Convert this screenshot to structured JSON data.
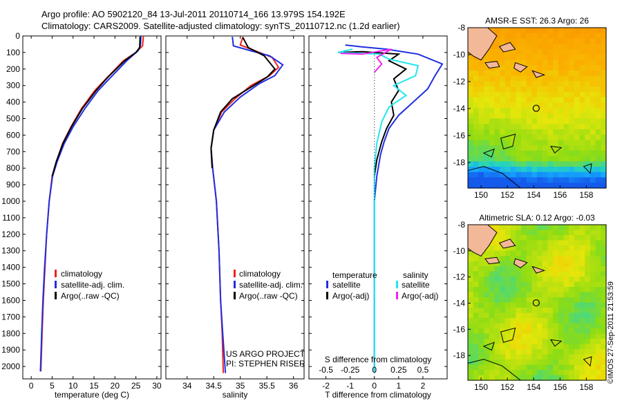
{
  "header": {
    "line1": "Argo profile: AO 5902120_84 13-Jul-2011 20110714_166 13.979S 154.192E",
    "line2": "Climatology: CARS2009. Satellite-adjusted climatology: synTS_20110712.nc (1.2d earlier)"
  },
  "colors": {
    "climatology": "#e8231f",
    "satellite": "#1f2ee0",
    "argo": "#000000",
    "sal_satellite": "#22e6ee",
    "sal_argo": "#ee22ee",
    "sst_warm": "#f6a300",
    "sst_mid": "#9fd600",
    "sst_cool": "#14aaff",
    "land": "#f3b898"
  },
  "depth_axis": {
    "ticks": [
      "0",
      "100",
      "200",
      "300",
      "400",
      "500",
      "600",
      "700",
      "800",
      "900",
      "1000",
      "1100",
      "1200",
      "1300",
      "1400",
      "1500",
      "1600",
      "1700",
      "1800",
      "1900",
      "2000"
    ],
    "range": [
      0,
      2075
    ]
  },
  "chart_data": [
    {
      "type": "line",
      "name": "temperature",
      "xlabel": "temperature (deg C)",
      "xlim": [
        -2,
        31
      ],
      "xticks": [
        "0",
        "5",
        "10",
        "15",
        "20",
        "25",
        "30"
      ],
      "xtick_values": [
        0,
        5,
        10,
        15,
        20,
        25,
        30
      ],
      "legend": [
        "climatology",
        "satellite-adj. clim.",
        "Argo(..raw -QC)"
      ],
      "series": [
        {
          "name": "climatology",
          "color": "#e8231f",
          "points": [
            [
              26.8,
              0
            ],
            [
              26.6,
              60
            ],
            [
              25.0,
              100
            ],
            [
              22.0,
              150
            ],
            [
              18.2,
              250
            ],
            [
              15.2,
              330
            ],
            [
              12.0,
              440
            ],
            [
              9.5,
              550
            ],
            [
              7.5,
              650
            ],
            [
              6.0,
              760
            ],
            [
              5.0,
              850
            ],
            [
              4.3,
              1000
            ],
            [
              3.7,
              1200
            ],
            [
              3.3,
              1400
            ],
            [
              2.9,
              1600
            ],
            [
              2.6,
              1800
            ],
            [
              2.3,
              2030
            ]
          ]
        },
        {
          "name": "satellite-adj. clim.",
          "color": "#1f2ee0",
          "points": [
            [
              26.2,
              0
            ],
            [
              26.1,
              55
            ],
            [
              25.5,
              90
            ],
            [
              22.8,
              150
            ],
            [
              19.0,
              250
            ],
            [
              16.0,
              330
            ],
            [
              12.8,
              440
            ],
            [
              10.0,
              550
            ],
            [
              7.9,
              650
            ],
            [
              6.2,
              760
            ],
            [
              5.1,
              850
            ],
            [
              4.3,
              1000
            ],
            [
              3.7,
              1200
            ],
            [
              3.2,
              1400
            ],
            [
              2.8,
              1600
            ],
            [
              2.5,
              1800
            ],
            [
              2.2,
              2030
            ]
          ]
        },
        {
          "name": "Argo(..raw -QC)",
          "color": "#000000",
          "points": [
            [
              26.0,
              5
            ],
            [
              25.9,
              70
            ],
            [
              25.0,
              100
            ],
            [
              22.3,
              150
            ],
            [
              18.3,
              250
            ],
            [
              15.5,
              330
            ],
            [
              12.2,
              440
            ],
            [
              9.6,
              550
            ],
            [
              7.6,
              650
            ],
            [
              6.0,
              760
            ],
            [
              5.0,
              850
            ]
          ]
        }
      ]
    },
    {
      "type": "line",
      "name": "salinity",
      "xlabel": "salinity",
      "xlim": [
        33.6,
        36.2
      ],
      "xticks": [
        "34",
        "34.5",
        "35",
        "35.5",
        "36"
      ],
      "xtick_values": [
        34,
        34.5,
        35,
        35.5,
        36
      ],
      "legend": [
        "climatology",
        "satellite-adj. clim.",
        "Argo(..raw -QC)"
      ],
      "annotation": [
        "US ARGO PROJECT",
        "PI: STEPHEN RISER"
      ],
      "series": [
        {
          "name": "climatology",
          "color": "#e8231f",
          "points": [
            [
              35.05,
              5
            ],
            [
              35.0,
              55
            ],
            [
              35.2,
              80
            ],
            [
              35.6,
              130
            ],
            [
              35.72,
              190
            ],
            [
              35.55,
              240
            ],
            [
              35.2,
              300
            ],
            [
              34.9,
              380
            ],
            [
              34.65,
              460
            ],
            [
              34.5,
              570
            ],
            [
              34.45,
              680
            ],
            [
              34.48,
              800
            ],
            [
              34.55,
              1000
            ],
            [
              34.6,
              1300
            ],
            [
              34.63,
              1600
            ],
            [
              34.66,
              1800
            ],
            [
              34.68,
              2040
            ]
          ]
        },
        {
          "name": "satellite-adj. clim.",
          "color": "#1f2ee0",
          "points": [
            [
              34.85,
              5
            ],
            [
              34.87,
              60
            ],
            [
              35.2,
              90
            ],
            [
              35.55,
              120
            ],
            [
              35.8,
              175
            ],
            [
              35.65,
              240
            ],
            [
              35.35,
              290
            ],
            [
              35.0,
              370
            ],
            [
              34.7,
              460
            ],
            [
              34.5,
              570
            ],
            [
              34.45,
              680
            ],
            [
              34.48,
              800
            ],
            [
              34.55,
              1000
            ],
            [
              34.6,
              1300
            ],
            [
              34.63,
              1600
            ],
            [
              34.67,
              1800
            ],
            [
              34.72,
              2040
            ]
          ]
        },
        {
          "name": "Argo(..raw -QC)",
          "color": "#000000",
          "points": [
            [
              35.05,
              10
            ],
            [
              35.15,
              70
            ],
            [
              35.45,
              120
            ],
            [
              35.65,
              200
            ],
            [
              35.5,
              250
            ],
            [
              35.2,
              310
            ],
            [
              34.85,
              380
            ],
            [
              34.63,
              460
            ],
            [
              34.5,
              570
            ],
            [
              34.45,
              680
            ],
            [
              34.47,
              800
            ]
          ]
        }
      ]
    },
    {
      "type": "line",
      "name": "differences",
      "xlabel_bottom": "T difference from climatology",
      "xlabel_top": "S difference from climatology",
      "xlim": [
        -2.7,
        3.0
      ],
      "xticks": [
        "-2",
        "-1",
        "0",
        "1",
        "2"
      ],
      "xtick_values": [
        -2,
        -1,
        0,
        1,
        2
      ],
      "top_ticks": [
        "-0.5",
        "-0.25",
        "0",
        "0.25",
        "0.5"
      ],
      "top_tick_values": [
        -2,
        -1,
        0,
        1,
        2
      ],
      "legend_temperature": [
        "temperature",
        "satellite",
        "Argo(-adj)"
      ],
      "legend_salinity": [
        "salinity",
        "satellite",
        "Argo(-adj)"
      ],
      "series": [
        {
          "name": "temperature satellite",
          "color": "#1f2ee0",
          "points": [
            [
              -1.2,
              55
            ],
            [
              -0.6,
              65
            ],
            [
              0.5,
              80
            ],
            [
              1.8,
              110
            ],
            [
              2.8,
              170
            ],
            [
              2.5,
              240
            ],
            [
              2.2,
              320
            ],
            [
              1.6,
              400
            ],
            [
              1.0,
              480
            ],
            [
              0.6,
              560
            ],
            [
              0.4,
              640
            ],
            [
              0.25,
              720
            ],
            [
              0.1,
              850
            ],
            [
              0.0,
              1000
            ],
            [
              0.0,
              2040
            ]
          ]
        },
        {
          "name": "temperature Argo(-adj)",
          "color": "#000000",
          "points": [
            [
              -1.5,
              100
            ],
            [
              -0.5,
              95
            ],
            [
              1.0,
              110
            ],
            [
              0.6,
              150
            ],
            [
              1.3,
              200
            ],
            [
              0.8,
              260
            ],
            [
              1.0,
              330
            ],
            [
              0.7,
              400
            ],
            [
              0.8,
              480
            ],
            [
              0.5,
              560
            ],
            [
              0.3,
              640
            ],
            [
              0.1,
              750
            ],
            [
              0.0,
              850
            ]
          ]
        },
        {
          "name": "salinity satellite",
          "color": "#22e6ee",
          "points": [
            [
              -0.9,
              80
            ],
            [
              -1.5,
              100
            ],
            [
              0.2,
              110
            ],
            [
              0.6,
              140
            ],
            [
              1.8,
              180
            ],
            [
              1.7,
              240
            ],
            [
              0.8,
              300
            ],
            [
              1.3,
              360
            ],
            [
              0.6,
              430
            ],
            [
              0.3,
              520
            ],
            [
              0.1,
              650
            ],
            [
              0.0,
              800
            ],
            [
              0.0,
              2040
            ]
          ]
        },
        {
          "name": "salinity Argo(-adj)",
          "color": "#ee22ee",
          "points": [
            [
              -1.4,
              105
            ],
            [
              -0.5,
              110
            ],
            [
              0.7,
              80
            ],
            [
              0.1,
              130
            ],
            [
              0.3,
              170
            ],
            [
              0.0,
              220
            ]
          ]
        }
      ]
    },
    {
      "type": "heatmap",
      "name": "sst-map",
      "title": "AMSR-E SST: 26.3 Argo: 26",
      "xlim": [
        149,
        159.5
      ],
      "ylim": [
        -19.9,
        -8
      ],
      "xticks": [
        "150",
        "152",
        "154",
        "156",
        "158"
      ],
      "yticks": [
        "-8",
        "-10",
        "-12",
        "-14",
        "-16",
        "-18"
      ],
      "marker": {
        "lon": 154.19,
        "lat": -13.98
      }
    },
    {
      "type": "heatmap",
      "name": "sla-map",
      "title": "Altimetric SLA: 0.12 Argo: -0.03",
      "xlim": [
        149,
        159.5
      ],
      "ylim": [
        -19.9,
        -8
      ],
      "xticks": [
        "150",
        "152",
        "154",
        "156",
        "158"
      ],
      "yticks": [
        "-8",
        "-10",
        "-12",
        "-14",
        "-16",
        "-18"
      ],
      "marker": {
        "lon": 154.19,
        "lat": -13.98
      }
    }
  ],
  "footer": {
    "stamp": "©IMOS 27-Sep-2011 21:53:59"
  }
}
